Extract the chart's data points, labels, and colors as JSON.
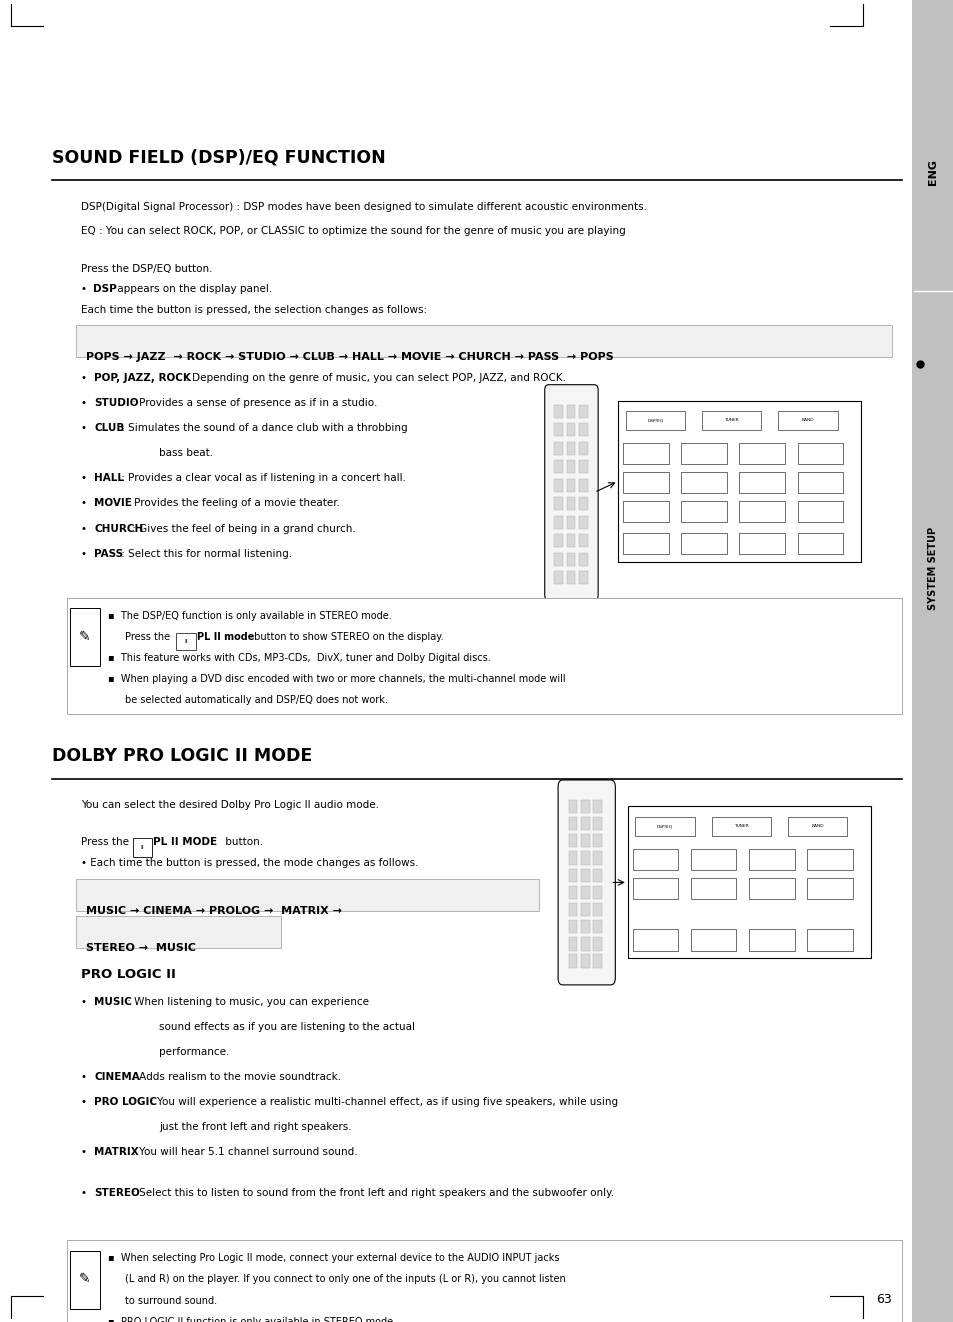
{
  "bg_color": "#ffffff",
  "title1": "SOUND FIELD (DSP)/EQ FUNCTION",
  "title2": "DOLBY PRO LOGIC II MODE",
  "subtitle_pro": "PRO LOGIC II",
  "eng_label": "ENG",
  "system_setup_label": "SYSTEM SETUP",
  "page_number": "63",
  "line1": "DSP(Digital Signal Processor) : DSP modes have been designed to simulate different acoustic environments.",
  "line2": "EQ : You can select ROCK, POP, or CLASSIC to optimize the sound for the genre of music you are playing",
  "line3": "Press the DSP/EQ button.",
  "line4_bold": "DSP",
  "line4_rest": " appears on the display panel.",
  "line5": "Each time the button is pressed, the selection changes as follows:",
  "sequence1": "POPS → JAZZ  → ROCK → STUDIO → CLUB → HALL → MOVIE → CHURCH → PASS  → POPS",
  "bullet1_bold": "POP, JAZZ, ROCK",
  "bullet1_rest": " : Depending on the genre of music, you can select POP, JAZZ, and ROCK.",
  "bullet2_bold": "STUDIO",
  "bullet2_rest": " : Provides a sense of presence as if in a studio.",
  "bullet3_bold": "CLUB",
  "bullet3_rest": " : Simulates the sound of a dance club with a throbbing",
  "bullet3_cont": "bass beat.",
  "bullet4_bold": "HALL",
  "bullet4_rest": " : Provides a clear vocal as if listening in a concert hall.",
  "bullet5_bold": "MOVIE",
  "bullet5_rest": " : Provides the feeling of a movie theater.",
  "bullet6_bold": "CHURCH",
  "bullet6_rest": " : Gives the feel of being in a grand church.",
  "bullet7_bold": "PASS",
  "bullet7_rest": " : Select this for normal listening.",
  "note1_1": "The DSP/EQ function is only available in STEREO mode.",
  "note1_2_pre": "Press the ",
  "note1_2_bold": "PL II mode",
  "note1_2_post": " button to show STEREO on the display.",
  "note1_3": "This feature works with CDs, MP3-CDs,  DivX, tuner and Dolby Digital discs.",
  "note1_4": "When playing a DVD disc encoded with two or more channels, the multi-channel mode will",
  "note1_5": "be selected automatically and DSP/EQ does not work.",
  "dolby_intro": "You can select the desired Dolby Pro Logic II audio mode.",
  "press_pl": "Press the ",
  "press_pl_bold": "PL II MODE",
  "press_pl_post": " button.",
  "each_time": "Each time the button is pressed, the mode changes as follows.",
  "sequence2_line1": "MUSIC → CINEMA → PROLOG →  MATRIX →",
  "sequence2_line2": "STEREO →  MUSIC",
  "prologIC_b1_bold": "MUSIC",
  "prologIC_b1_rest": " : When listening to music, you can experience",
  "prologIC_b1_cont1": "sound effects as if you are listening to the actual",
  "prologIC_b1_cont2": "performance.",
  "prologIC_b2_bold": "CINEMA",
  "prologIC_b2_rest": " : Adds realism to the movie soundtrack.",
  "prologIC_b3_bold": "PRO LOGIC",
  "prologIC_b3_rest": " : You will experience a realistic multi-channel effect, as if using five speakers, while using",
  "prologIC_b3_cont": "just the front left and right speakers.",
  "prologIC_b4_bold": "MATRIX",
  "prologIC_b4_rest": " : You will hear 5.1 channel surround sound.",
  "prologIC_b5_bold": "STEREO",
  "prologIC_b5_rest": " : Select this to listen to sound from the front left and right speakers and the subwoofer only.",
  "note2_1": "When selecting Pro Logic II mode, connect your external device to the AUDIO INPUT jacks",
  "note2_2": "(L and R) on the player. If you connect to only one of the inputs (L or R), you cannot listen",
  "note2_3": "to surround sound.",
  "note2_4": "PRO LOGIC II function is only available in STEREO mode."
}
